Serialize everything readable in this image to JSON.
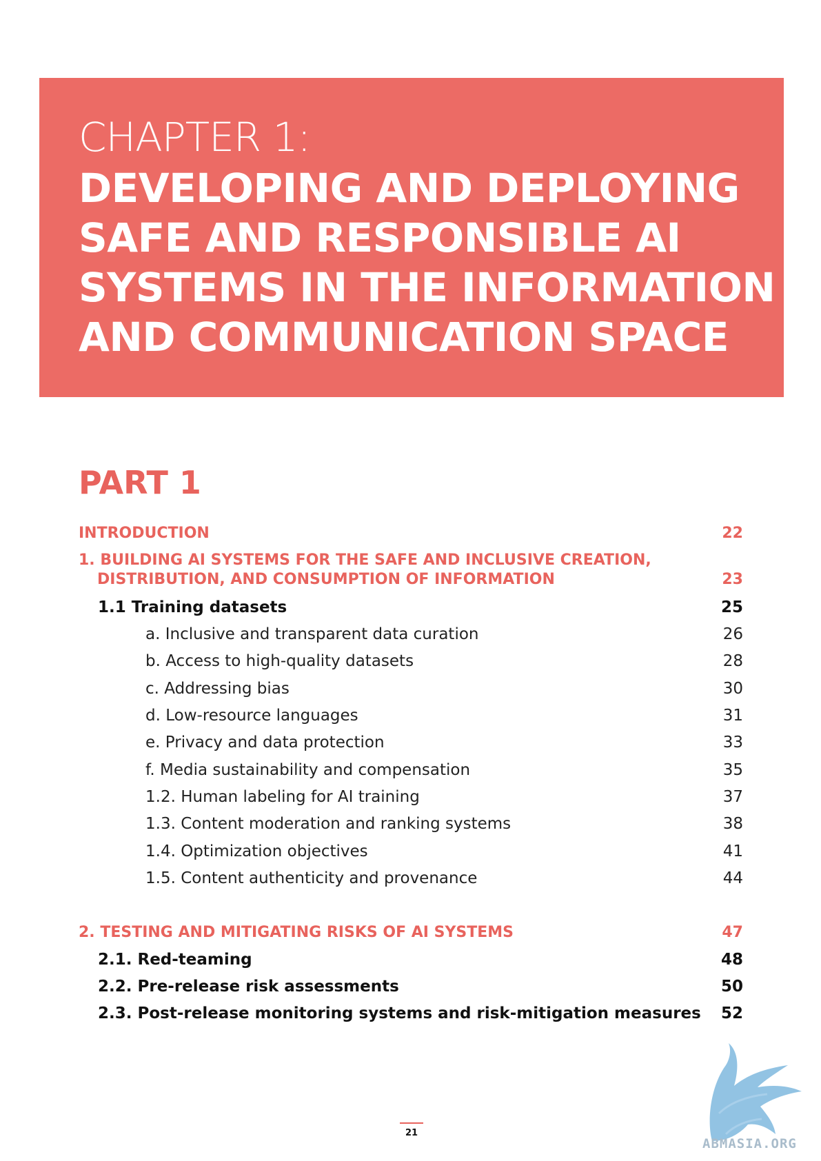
{
  "banner": {
    "chapter_label": "CHAPTER 1:",
    "title_lines": [
      "DEVELOPING AND DEPLOYING",
      "SAFE AND RESPONSIBLE AI",
      "SYSTEMS IN THE INFORMATION",
      "AND COMMUNICATION SPACE"
    ],
    "color": "#ec6b65"
  },
  "part_title": "PART 1",
  "toc": [
    {
      "title": "INTRODUCTION",
      "page": "22"
    },
    {
      "title": "1. BUILDING AI SYSTEMS FOR THE SAFE AND INCLUSIVE CREATION,",
      "page": ""
    },
    {
      "title": "DISTRIBUTION, AND CONSUMPTION OF INFORMATION",
      "page": "23"
    },
    {
      "title": "1.1 Training datasets",
      "page": "25"
    },
    {
      "title": "a. Inclusive and transparent data curation",
      "page": "26"
    },
    {
      "title": "b. Access to high-quality datasets",
      "page": "28"
    },
    {
      "title": "c. Addressing bias",
      "page": "30"
    },
    {
      "title": "d. Low-resource languages",
      "page": "31"
    },
    {
      "title": "e. Privacy and data protection",
      "page": "33"
    },
    {
      "title": "f. Media sustainability and compensation",
      "page": "35"
    },
    {
      "title": "1.2. Human labeling for AI training",
      "page": "37"
    },
    {
      "title": "1.3. Content moderation and ranking systems",
      "page": "38"
    },
    {
      "title": "1.4. Optimization objectives",
      "page": "41"
    },
    {
      "title": "1.5. Content authenticity and provenance",
      "page": "44"
    },
    {
      "title": "2. TESTING AND MITIGATING RISKS OF AI SYSTEMS",
      "page": "47"
    },
    {
      "title": "2.1. Red-teaming",
      "page": "48"
    },
    {
      "title": "2.2. Pre-release risk assessments",
      "page": "50"
    },
    {
      "title": "2.3. Post-release monitoring systems and risk-mitigation measures",
      "page": "52"
    }
  ],
  "page_number": "21",
  "watermark_text": "ABMASIA.ORG",
  "accent_color": "#e8635d"
}
